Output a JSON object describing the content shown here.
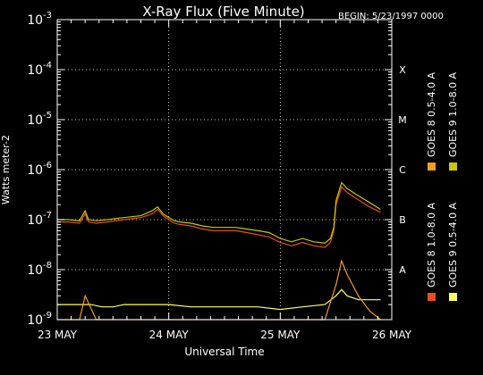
{
  "chart_data": {
    "type": "line",
    "title": "X-Ray Flux (Five Minute)",
    "begin_label": "BEGIN: 5/23/1997 0000",
    "xlabel": "Universal Time",
    "ylabel": "Watts meter-2",
    "x_ticks": [
      "23 MAY",
      "24 MAY",
      "25 MAY",
      "26 MAY"
    ],
    "xlim_days": [
      0,
      3
    ],
    "y_scale": "log",
    "ylim_exp": [
      -9,
      -3
    ],
    "y_ticks": [
      "10-9",
      "10-8",
      "10-7",
      "10-6",
      "10-5",
      "10-4",
      "10-3"
    ],
    "y_tick_mantissa": "10",
    "y_tick_exponents": [
      "-9",
      "-8",
      "-7",
      "-6",
      "-5",
      "-4",
      "-3"
    ],
    "class_labels": [
      "A",
      "B",
      "C",
      "M",
      "X"
    ],
    "grid": "dotted",
    "legend": "right",
    "series": [
      {
        "name": "GOES 8 1.0-8.0 A",
        "color": "#e8501a",
        "x": [
          0.0,
          0.1,
          0.2,
          0.25,
          0.28,
          0.35,
          0.45,
          0.6,
          0.75,
          0.85,
          0.9,
          0.95,
          1.0,
          1.05,
          1.1,
          1.2,
          1.3,
          1.4,
          1.5,
          1.6,
          1.7,
          1.8,
          1.9,
          2.0,
          2.1,
          2.2,
          2.3,
          2.4,
          2.45,
          2.48,
          2.5,
          2.55,
          2.6,
          2.7,
          2.8,
          2.9
        ],
        "y": [
          9e-08,
          9e-08,
          8.5e-08,
          1.3e-07,
          9e-08,
          8.5e-08,
          9e-08,
          1e-07,
          1.1e-07,
          1.3e-07,
          1.6e-07,
          1.2e-07,
          1e-07,
          8.5e-08,
          8e-08,
          7.5e-08,
          6.5e-08,
          6e-08,
          6e-08,
          6e-08,
          5.5e-08,
          5e-08,
          4.5e-08,
          3.5e-08,
          3e-08,
          3.5e-08,
          3e-08,
          2.8e-08,
          3.5e-08,
          6e-08,
          2e-07,
          4.5e-07,
          3.5e-07,
          2.5e-07,
          1.8e-07,
          1.4e-07
        ]
      },
      {
        "name": "GOES 8 0.5-4.0 A",
        "color": "#f0a020",
        "x": [
          0.0,
          0.1,
          0.2,
          0.25,
          0.35,
          0.5,
          0.6,
          0.7,
          0.8,
          0.9,
          1.0,
          1.2,
          1.5,
          1.8,
          2.0,
          2.2,
          2.4,
          2.5,
          2.55,
          2.6,
          2.7,
          2.8,
          2.9
        ],
        "y": [
          1e-09,
          1e-09,
          1e-09,
          3e-09,
          1e-09,
          1e-09,
          1e-09,
          1e-09,
          1e-09,
          1e-09,
          1e-09,
          1e-09,
          1e-09,
          1e-09,
          1e-09,
          1e-09,
          1e-09,
          5e-09,
          1.5e-08,
          8e-09,
          3e-09,
          1.5e-09,
          1e-09
        ]
      },
      {
        "name": "GOES 9 0.5-4.0 A",
        "color": "#ffff60",
        "x": [
          0.0,
          0.1,
          0.2,
          0.3,
          0.4,
          0.5,
          0.6,
          0.7,
          0.8,
          0.9,
          1.0,
          1.2,
          1.4,
          1.6,
          1.8,
          2.0,
          2.2,
          2.4,
          2.5,
          2.55,
          2.6,
          2.7,
          2.8,
          2.9
        ],
        "y": [
          2e-09,
          2e-09,
          2e-09,
          2e-09,
          1.8e-09,
          1.8e-09,
          2e-09,
          2e-09,
          2e-09,
          2e-09,
          2e-09,
          1.8e-09,
          1.8e-09,
          1.8e-09,
          1.8e-09,
          1.6e-09,
          1.8e-09,
          2e-09,
          3e-09,
          4e-09,
          3e-09,
          2.5e-09,
          2.5e-09,
          2.5e-09
        ]
      },
      {
        "name": "GOES 9 1.0-8.0 A",
        "color": "#c8c800",
        "x": [
          0.0,
          0.1,
          0.2,
          0.25,
          0.28,
          0.35,
          0.45,
          0.6,
          0.75,
          0.85,
          0.9,
          0.95,
          1.0,
          1.05,
          1.1,
          1.2,
          1.3,
          1.4,
          1.5,
          1.6,
          1.7,
          1.8,
          1.9,
          2.0,
          2.1,
          2.2,
          2.3,
          2.4,
          2.45,
          2.48,
          2.5,
          2.55,
          2.6,
          2.7,
          2.8,
          2.9
        ],
        "y": [
          1e-07,
          1e-07,
          9.5e-08,
          1.5e-07,
          1e-07,
          9.5e-08,
          1e-07,
          1.1e-07,
          1.2e-07,
          1.5e-07,
          1.8e-07,
          1.3e-07,
          1.1e-07,
          9.5e-08,
          9e-08,
          8.5e-08,
          7.5e-08,
          7e-08,
          7e-08,
          7e-08,
          6.5e-08,
          6e-08,
          5.5e-08,
          4.2e-08,
          3.6e-08,
          4.2e-08,
          3.6e-08,
          3.4e-08,
          4.2e-08,
          7e-08,
          2.4e-07,
          5.5e-07,
          4.2e-07,
          3e-07,
          2.2e-07,
          1.6e-07
        ]
      }
    ],
    "legend_order": [
      0,
      1,
      2,
      3
    ]
  }
}
